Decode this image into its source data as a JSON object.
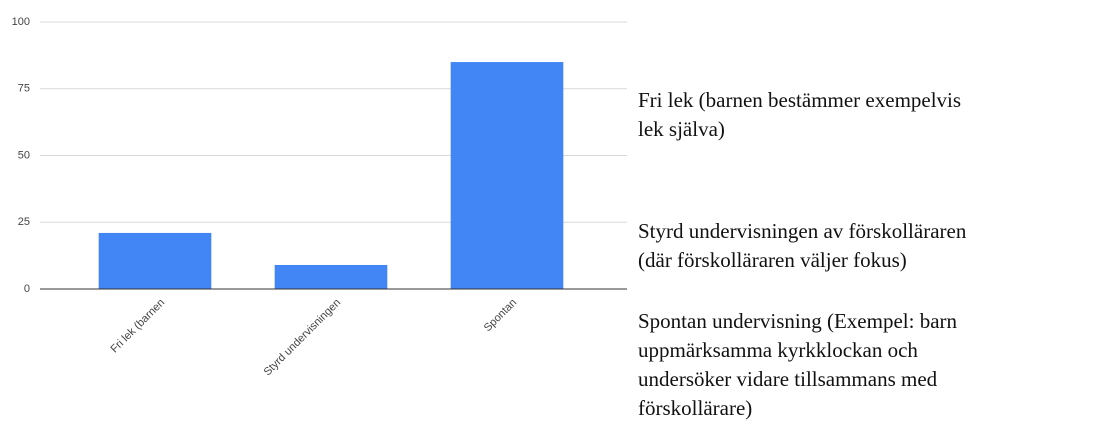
{
  "chart_data": {
    "type": "bar",
    "categories": [
      "Fri lek (barnen",
      "Styrd undervisningen",
      "Spontan"
    ],
    "values": [
      21,
      9,
      85
    ],
    "color": "#4285f4",
    "ylim": [
      0,
      100
    ],
    "yticks": [
      0,
      25,
      50,
      75,
      100
    ],
    "grid": true
  },
  "notes": [
    [
      "Fri lek (barnen bestämmer exempelvis",
      "lek själva)"
    ],
    [
      "Styrd undervisningen av förskolläraren",
      "(där förskolläraren väljer fokus)"
    ],
    [
      "Spontan undervisning (Exempel: barn",
      "uppmärksamma kyrkklockan och",
      "undersöker vidare tillsammans med",
      "förskollärare)"
    ]
  ]
}
